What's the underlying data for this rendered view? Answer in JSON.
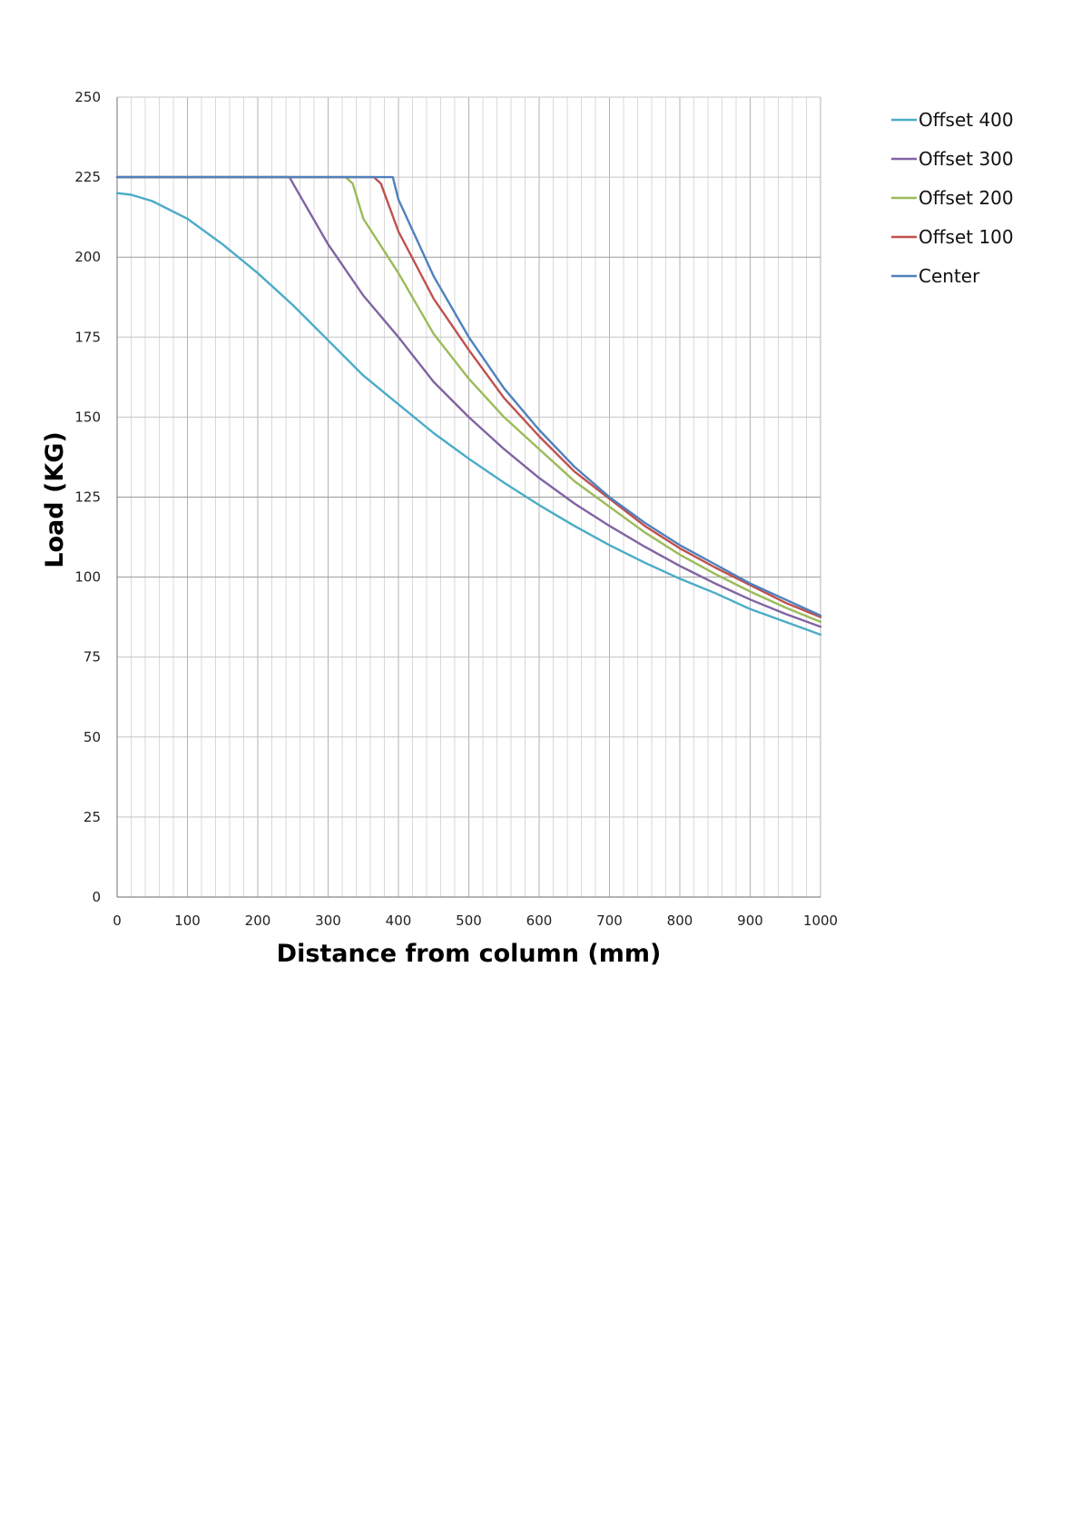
{
  "chart_data": {
    "type": "line",
    "title": "",
    "xlabel": "Distance from column (mm)",
    "ylabel": "Load (KG)",
    "xlim": [
      0,
      1000
    ],
    "ylim": [
      0,
      250
    ],
    "x_ticks": [
      0,
      100,
      200,
      300,
      400,
      500,
      600,
      700,
      800,
      900,
      1000
    ],
    "y_ticks": [
      0,
      25,
      50,
      75,
      100,
      125,
      150,
      175,
      200,
      225,
      250
    ],
    "x_tick_labels": [
      "0",
      "100",
      "200",
      "300",
      "400",
      "500",
      "600",
      "700",
      "800",
      "900",
      "1000"
    ],
    "y_tick_labels": [
      "0",
      "25",
      "50",
      "75",
      "100",
      "125",
      "150",
      "175",
      "200",
      "225",
      "250"
    ],
    "grid": true,
    "legend_position": "right",
    "series": [
      {
        "name": "Offset 400",
        "color": "#4BACC6",
        "x": [
          0,
          20,
          50,
          100,
          150,
          200,
          250,
          300,
          350,
          400,
          450,
          500,
          550,
          600,
          650,
          700,
          750,
          800,
          850,
          900,
          950,
          1000
        ],
        "y": [
          220,
          219.5,
          217.5,
          212,
          204,
          195,
          185,
          174,
          163,
          154,
          145,
          137,
          129.5,
          122.5,
          116,
          110,
          104.5,
          99.5,
          95,
          90,
          86,
          82
        ]
      },
      {
        "name": "Offset 300",
        "color": "#8064A2",
        "x": [
          0,
          245,
          250,
          300,
          350,
          400,
          450,
          500,
          550,
          600,
          650,
          700,
          750,
          800,
          850,
          900,
          950,
          1000
        ],
        "y": [
          225,
          225,
          223,
          204,
          188,
          175,
          161,
          150,
          140,
          131,
          123,
          116,
          109.5,
          103.5,
          98,
          93,
          88.5,
          84.5
        ]
      },
      {
        "name": "Offset 200",
        "color": "#9BBB59",
        "x": [
          0,
          325,
          335,
          350,
          400,
          450,
          500,
          550,
          600,
          650,
          700,
          750,
          800,
          850,
          900,
          950,
          1000
        ],
        "y": [
          225,
          225,
          223,
          212,
          195,
          176,
          162,
          150,
          140,
          130,
          122,
          114,
          107,
          101,
          95.5,
          90.5,
          86
        ]
      },
      {
        "name": "Offset 100",
        "color": "#C0504D",
        "x": [
          0,
          365,
          375,
          400,
          450,
          500,
          550,
          600,
          650,
          700,
          750,
          800,
          850,
          900,
          950,
          1000
        ],
        "y": [
          225,
          225,
          223,
          208,
          187,
          171,
          156,
          144,
          133,
          124.5,
          116,
          109,
          103,
          97.5,
          92,
          87.5
        ]
      },
      {
        "name": "Center",
        "color": "#4F81BD",
        "x": [
          0,
          392,
          400,
          450,
          500,
          550,
          600,
          650,
          700,
          750,
          800,
          850,
          900,
          950,
          1000
        ],
        "y": [
          225,
          225,
          218,
          194,
          175,
          159,
          146,
          134.5,
          125,
          117,
          110,
          104,
          98,
          93,
          88
        ]
      }
    ]
  }
}
